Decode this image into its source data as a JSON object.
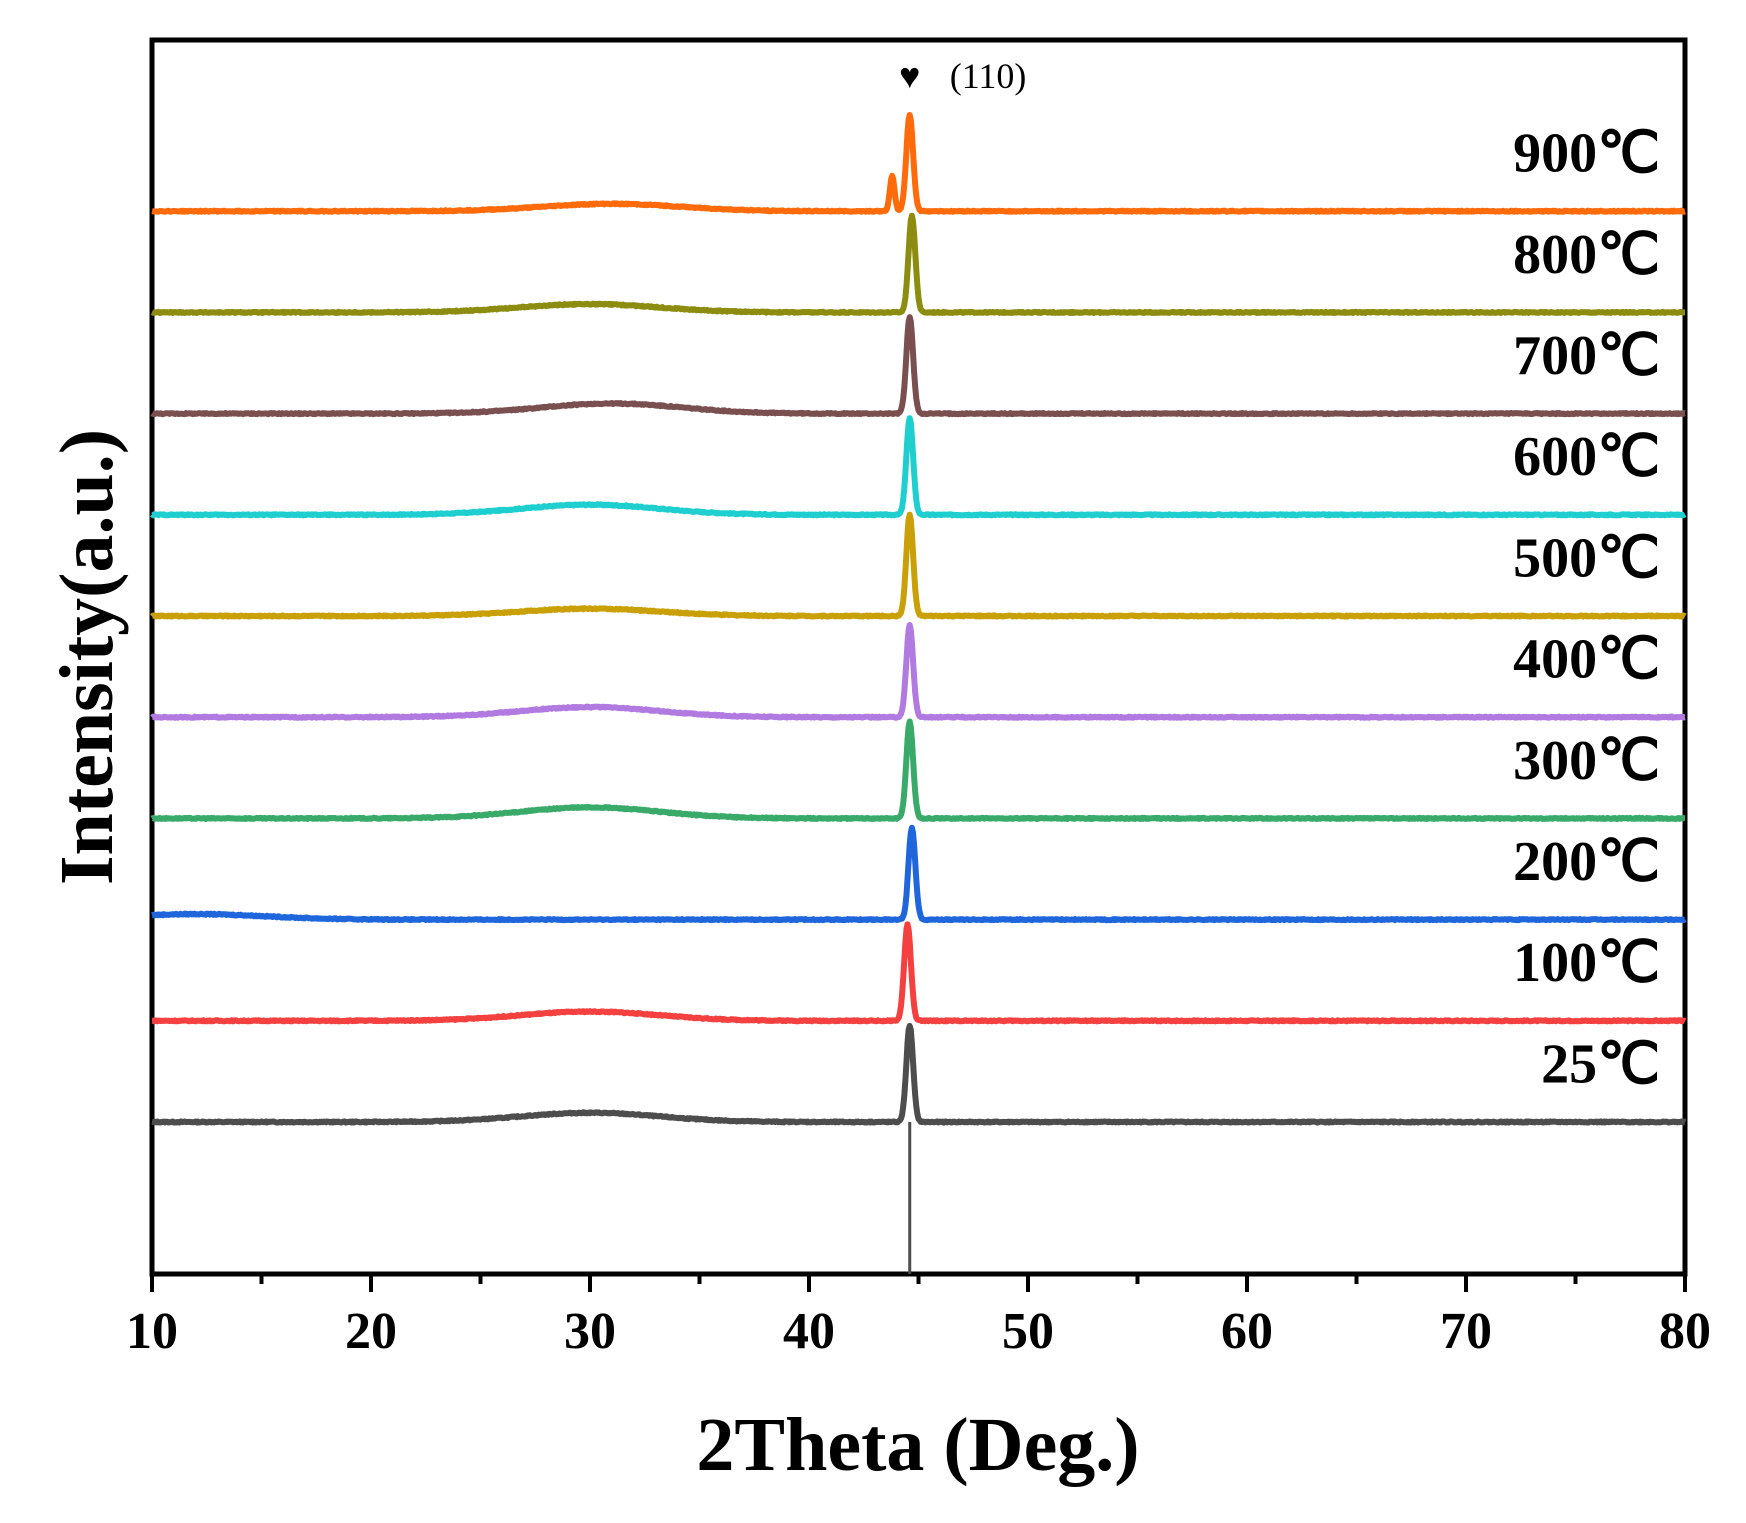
{
  "chart_data": {
    "type": "line",
    "xlabel": "2Theta (Deg.)",
    "ylabel": "Intensity(a.u.)",
    "xlim": [
      10,
      80
    ],
    "xticks": [
      10,
      20,
      30,
      40,
      50,
      60,
      70,
      80
    ],
    "tick_labels": [
      "10",
      "20",
      "30",
      "40",
      "50",
      "60",
      "70",
      "80"
    ],
    "yticks_shown": false,
    "grid": false,
    "legend": "none",
    "peak_annotation": {
      "symbol": "♥",
      "text": "(110)",
      "x": 44.6
    },
    "reference_line": {
      "x": 44.6
    },
    "series": [
      {
        "name": "25℃",
        "color": "#4d4d4d",
        "baseline": 0,
        "peak_x": 44.6,
        "peak_height": 10.5,
        "hump_x": 30,
        "hump_height": 1.0,
        "shoulder": null
      },
      {
        "name": "100℃",
        "color": "#f4403f",
        "baseline": 11,
        "peak_x": 44.5,
        "peak_height": 10.5,
        "hump_x": 30,
        "hump_height": 1.0,
        "shoulder": null
      },
      {
        "name": "200℃",
        "color": "#1f66dd",
        "baseline": 22,
        "peak_x": 44.7,
        "peak_height": 10.0,
        "hump_x": 12,
        "hump_height": 0.6,
        "shoulder": null
      },
      {
        "name": "300℃",
        "color": "#3aaa6b",
        "baseline": 33,
        "peak_x": 44.6,
        "peak_height": 10.5,
        "hump_x": 30,
        "hump_height": 1.2,
        "shoulder": null
      },
      {
        "name": "400℃",
        "color": "#b07ae0",
        "baseline": 44,
        "peak_x": 44.6,
        "peak_height": 10.0,
        "hump_x": 30,
        "hump_height": 1.1,
        "shoulder": null
      },
      {
        "name": "500℃",
        "color": "#c9a007",
        "baseline": 55,
        "peak_x": 44.6,
        "peak_height": 11.0,
        "hump_x": 30,
        "hump_height": 0.8,
        "shoulder": null
      },
      {
        "name": "600℃",
        "color": "#1fcfcf",
        "baseline": 66,
        "peak_x": 44.6,
        "peak_height": 10.5,
        "hump_x": 30,
        "hump_height": 1.1,
        "shoulder": null
      },
      {
        "name": "700℃",
        "color": "#7a4f4f",
        "baseline": 77,
        "peak_x": 44.6,
        "peak_height": 10.5,
        "hump_x": 31,
        "hump_height": 1.1,
        "shoulder": null
      },
      {
        "name": "800℃",
        "color": "#8c8c10",
        "baseline": 88,
        "peak_x": 44.7,
        "peak_height": 10.5,
        "hump_x": 30,
        "hump_height": 0.9,
        "shoulder": null
      },
      {
        "name": "900℃",
        "color": "#ff6a0a",
        "baseline": 99,
        "peak_x": 44.6,
        "peak_height": 10.5,
        "hump_x": 31,
        "hump_height": 0.8,
        "shoulder": {
          "x": 43.8,
          "height": 3.8
        }
      }
    ]
  }
}
